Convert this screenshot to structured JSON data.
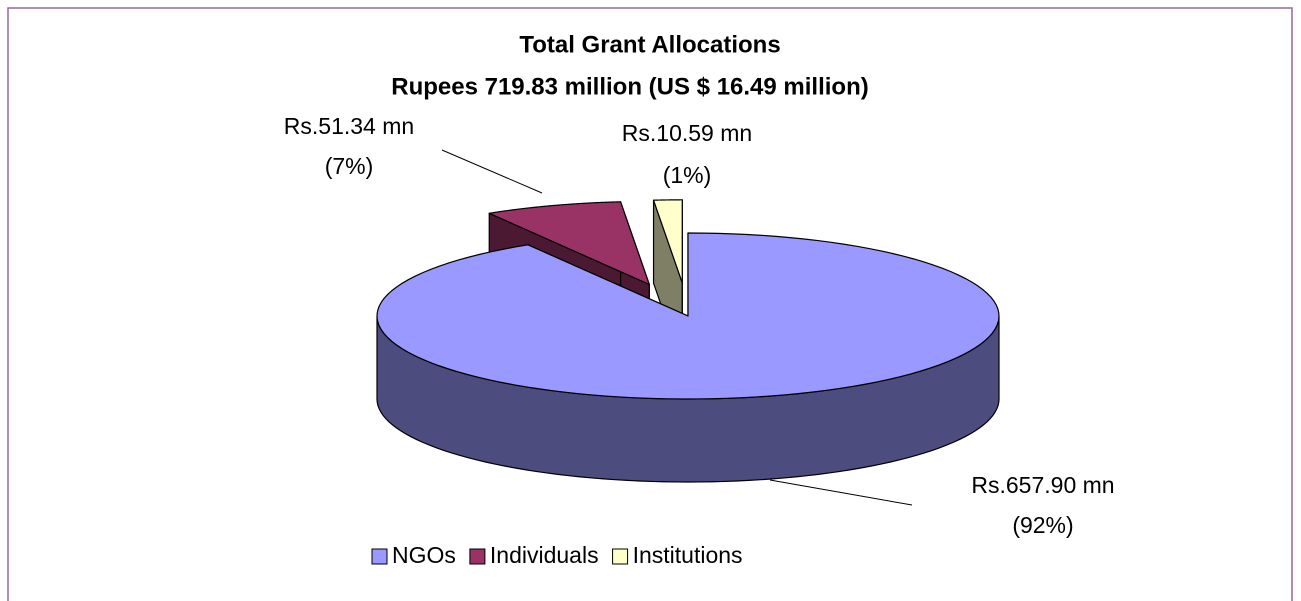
{
  "chart_data": {
    "type": "pie3d",
    "title": "Total Grant Allocations",
    "subtitle": "Rupees 719.83 million (US $ 16.49 million)",
    "categories": [
      "NGOs",
      "Individuals",
      "Institutions"
    ],
    "values": [
      657.9,
      51.34,
      10.59
    ],
    "value_labels": [
      "Rs.657.90 mn",
      "Rs.51.34 mn",
      "Rs.10.59 mn"
    ],
    "percent_labels": [
      "(92%)",
      "(7%)",
      "(1%)"
    ],
    "colors": [
      "#9999ff",
      "#993366",
      "#ffffcc"
    ],
    "legend": "bottom"
  }
}
